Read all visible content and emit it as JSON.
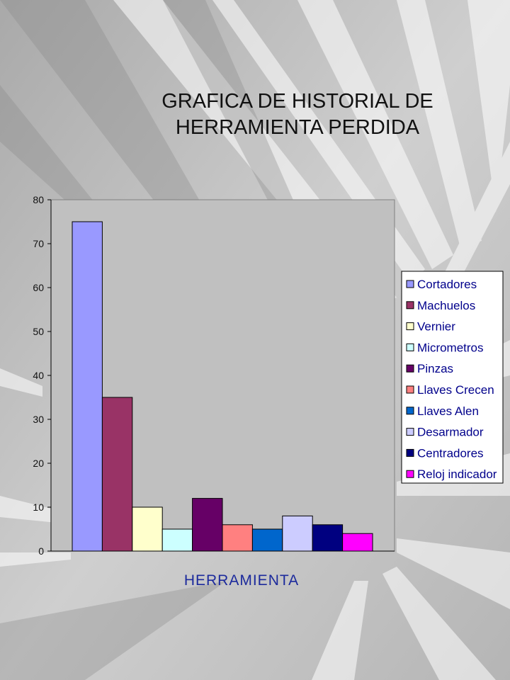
{
  "slide": {
    "title_line1": "GRAFICA DE HISTORIAL DE",
    "title_line2": "HERRAMIENTA PERDIDA"
  },
  "chart_data": {
    "type": "bar",
    "title": "GRAFICA DE HISTORIAL DE HERRAMIENTA PERDIDA",
    "xlabel": "HERRAMIENTA",
    "ylabel": "",
    "ylim": [
      0,
      80
    ],
    "yticks": [
      0,
      10,
      20,
      30,
      40,
      50,
      60,
      70,
      80
    ],
    "yticklabels": [
      "0",
      "10",
      "20",
      "30",
      "40",
      "50",
      "60",
      "70",
      "80"
    ],
    "categories": [
      "Cortadores",
      "Machuelos",
      "Vernier",
      "Micrometros",
      "Pinzas",
      "Llaves Crecen",
      "Llaves Alen",
      "Desarmador",
      "Centradores",
      "Reloj indicador"
    ],
    "values": [
      75,
      35,
      10,
      5,
      12,
      6,
      5,
      8,
      6,
      4
    ],
    "colors": [
      "#9999ff",
      "#993366",
      "#ffffcc",
      "#ccffff",
      "#660066",
      "#ff8080",
      "#0066cc",
      "#ccccff",
      "#000080",
      "#ff00ff"
    ],
    "grid": false,
    "legend_position": "right",
    "plot_background": "#c0c0c0"
  }
}
